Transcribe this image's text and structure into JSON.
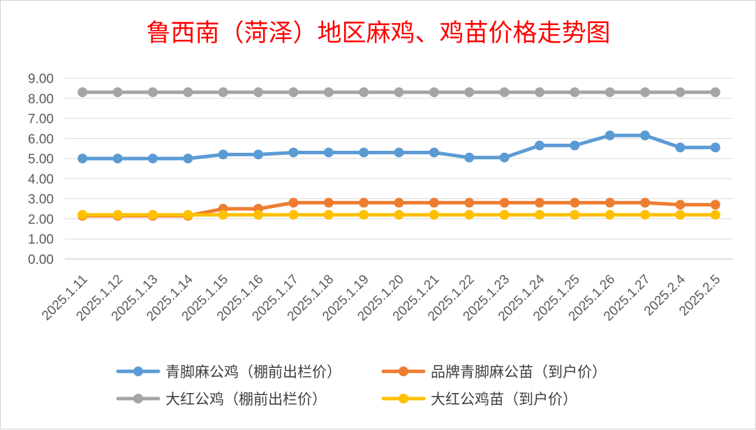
{
  "chart_data": {
    "type": "line",
    "title": "鲁西南（菏泽）地区麻鸡、鸡苗价格走势图",
    "title_color": "#ff0000",
    "xlabel": "",
    "ylabel": "",
    "ylim": [
      0,
      9
    ],
    "y_ticks": [
      "0.00",
      "1.00",
      "2.00",
      "3.00",
      "4.00",
      "5.00",
      "6.00",
      "7.00",
      "8.00",
      "9.00"
    ],
    "grid": "horizontal",
    "legend_position": "bottom",
    "categories": [
      "2025.1.11",
      "2025.1.12",
      "2025.1.13",
      "2025.1.14",
      "2025.1.15",
      "2025.1.16",
      "2025.1.17",
      "2025.1.18",
      "2025.1.19",
      "2025.1.20",
      "2025.1.21",
      "2025.1.22",
      "2025.1.23",
      "2025.1.24",
      "2025.1.25",
      "2025.1.26",
      "2025.1.27",
      "2025.2.4",
      "2025.2.5"
    ],
    "series": [
      {
        "name": "青脚麻公鸡（棚前出栏价）",
        "color": "#5b9bd5",
        "values": [
          5.0,
          5.0,
          5.0,
          5.0,
          5.2,
          5.2,
          5.3,
          5.3,
          5.3,
          5.3,
          5.3,
          5.05,
          5.05,
          5.65,
          5.65,
          6.15,
          6.15,
          5.55,
          5.55
        ]
      },
      {
        "name": "品牌青脚麻公苗（到户价）",
        "color": "#ed7d31",
        "values": [
          2.15,
          2.15,
          2.15,
          2.15,
          2.5,
          2.5,
          2.8,
          2.8,
          2.8,
          2.8,
          2.8,
          2.8,
          2.8,
          2.8,
          2.8,
          2.8,
          2.8,
          2.7,
          2.7
        ]
      },
      {
        "name": "大红公鸡（棚前出栏价）",
        "color": "#a5a5a5",
        "values": [
          8.3,
          8.3,
          8.3,
          8.3,
          8.3,
          8.3,
          8.3,
          8.3,
          8.3,
          8.3,
          8.3,
          8.3,
          8.3,
          8.3,
          8.3,
          8.3,
          8.3,
          8.3,
          8.3
        ]
      },
      {
        "name": "大红公鸡苗（到户价）",
        "color": "#ffc000",
        "values": [
          2.2,
          2.2,
          2.2,
          2.2,
          2.2,
          2.2,
          2.2,
          2.2,
          2.2,
          2.2,
          2.2,
          2.2,
          2.2,
          2.2,
          2.2,
          2.2,
          2.2,
          2.2,
          2.2
        ]
      }
    ]
  }
}
